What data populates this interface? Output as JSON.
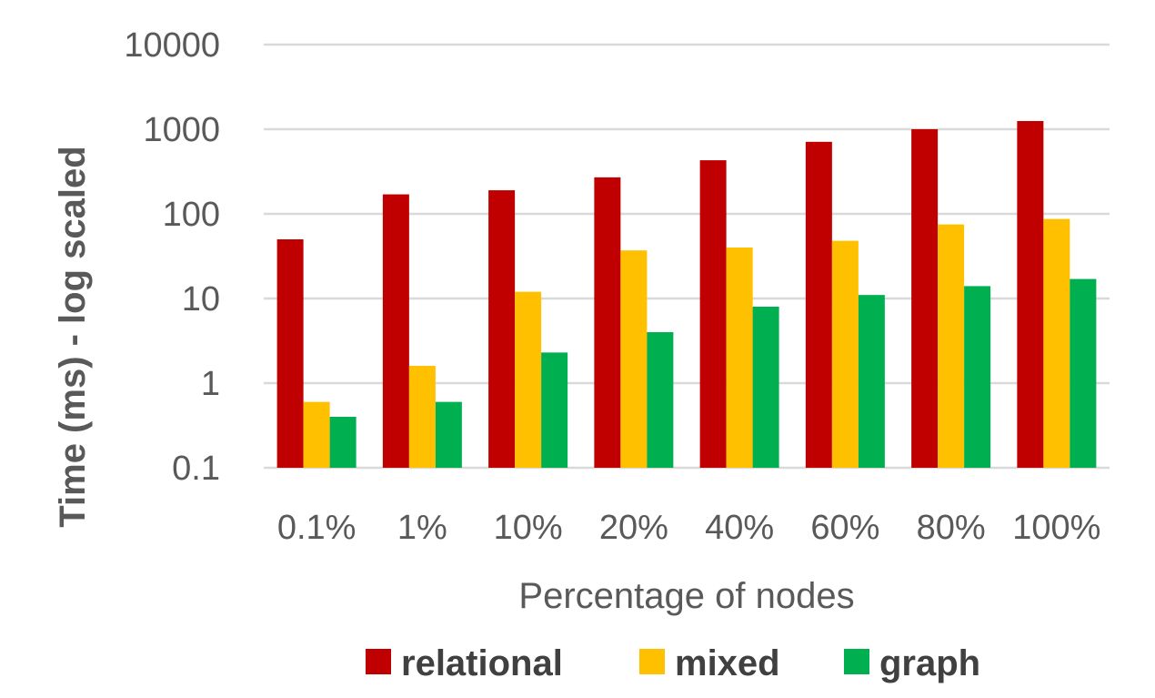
{
  "chart_data": {
    "type": "bar",
    "title": "",
    "xlabel": "Percentage of nodes",
    "ylabel": "Time (ms) - log scaled",
    "yscale": "log",
    "ylim": [
      0.1,
      10000
    ],
    "yticks": [
      "0.1",
      "1",
      "10",
      "100",
      "1000",
      "10000"
    ],
    "categories": [
      "0.1%",
      "1%",
      "10%",
      "20%",
      "40%",
      "60%",
      "80%",
      "100%"
    ],
    "series": [
      {
        "name": "relational",
        "color": "#C00000",
        "values": [
          50,
          170,
          190,
          270,
          430,
          710,
          1000,
          1250
        ]
      },
      {
        "name": "mixed",
        "color": "#FFC000",
        "values": [
          0.6,
          1.6,
          12,
          37,
          40,
          48,
          75,
          87
        ]
      },
      {
        "name": "graph",
        "color": "#00B050",
        "values": [
          0.4,
          0.6,
          2.3,
          4,
          8,
          11,
          14,
          17
        ]
      }
    ],
    "grid": true,
    "legend_position": "bottom"
  }
}
